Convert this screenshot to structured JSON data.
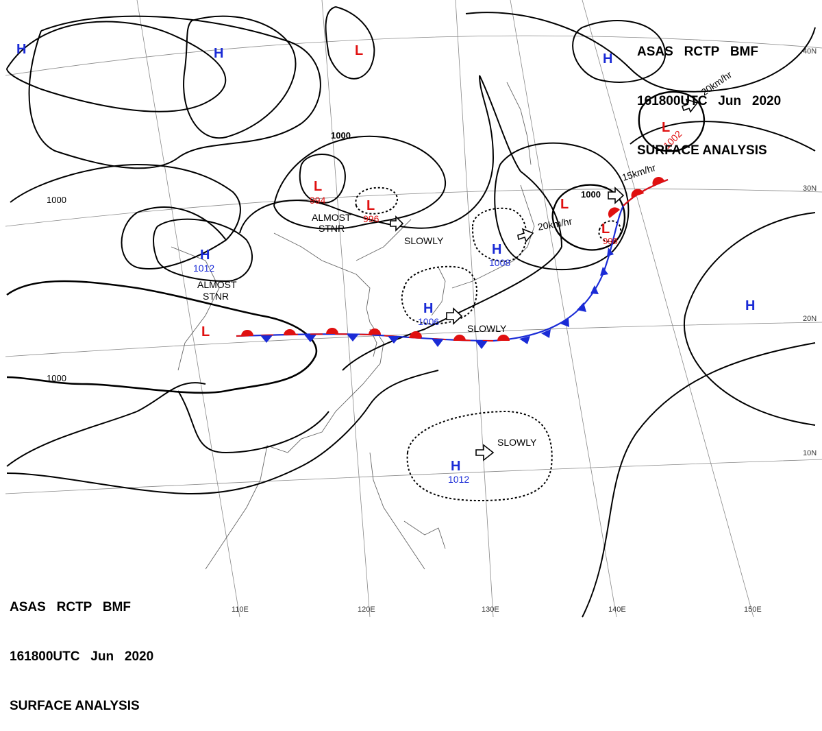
{
  "header": {
    "line1": "ASAS   RCTP   BMF",
    "line2": "161800UTC   Jun   2020",
    "line3": "SURFACE ANALYSIS"
  },
  "colors": {
    "high": "#1a2bd6",
    "low": "#e01010",
    "isobar": "#000000",
    "coast": "#555555",
    "grid": "#888888"
  },
  "lat_labels": [
    "40N",
    "30N",
    "20N",
    "10N"
  ],
  "lon_labels": [
    "110E",
    "120E",
    "130E",
    "140E",
    "150E"
  ],
  "isobar_labels": [
    "1000",
    "1000",
    "1000",
    "1000"
  ],
  "pressure_centers": [
    {
      "type": "H",
      "value": ""
    },
    {
      "type": "H",
      "value": ""
    },
    {
      "type": "L",
      "value": ""
    },
    {
      "type": "H",
      "value": ""
    },
    {
      "type": "L",
      "value": "1002"
    },
    {
      "type": "L",
      "value": "994"
    },
    {
      "type": "L",
      "value": "996"
    },
    {
      "type": "H",
      "value": "1012"
    },
    {
      "type": "H",
      "value": "1008"
    },
    {
      "type": "L",
      "value": ""
    },
    {
      "type": "L",
      "value": "998"
    },
    {
      "type": "H",
      "value": "1006"
    },
    {
      "type": "L",
      "value": ""
    },
    {
      "type": "H",
      "value": ""
    },
    {
      "type": "H",
      "value": "1012"
    }
  ],
  "motion_labels": [
    "ALMOST",
    "STNR",
    "ALMOST",
    "STNR",
    "SLOWLY",
    "SLOWLY",
    "SLOWLY",
    "20km/hr",
    "20km/hr",
    "15km/hr"
  ]
}
